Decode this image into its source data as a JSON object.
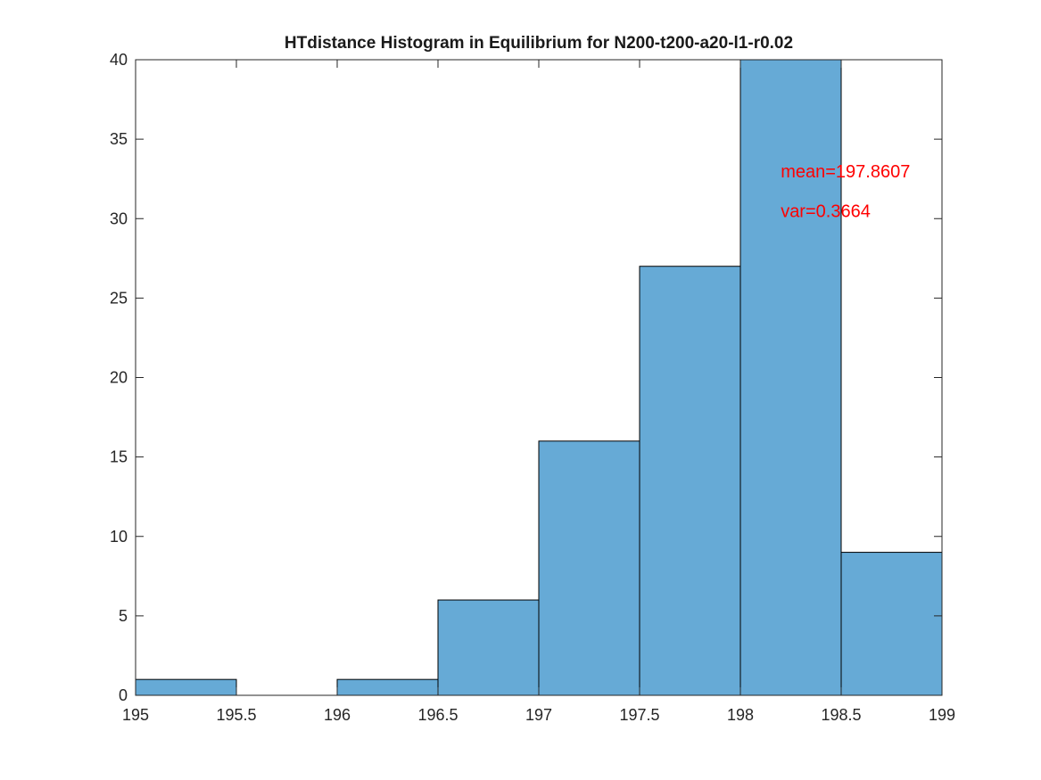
{
  "chart_data": {
    "type": "bar",
    "subtype": "histogram",
    "title": "HTdistance Histogram in Equilibrium for N200-t200-a20-l1-r0.02",
    "xlabel": "",
    "ylabel": "",
    "xlim": [
      195,
      199
    ],
    "ylim": [
      0,
      40
    ],
    "bin_width": 0.5,
    "bins": [
      {
        "start": 195.0,
        "end": 195.5,
        "count": 1
      },
      {
        "start": 195.5,
        "end": 196.0,
        "count": 0
      },
      {
        "start": 196.0,
        "end": 196.5,
        "count": 1
      },
      {
        "start": 196.5,
        "end": 197.0,
        "count": 6
      },
      {
        "start": 197.0,
        "end": 197.5,
        "count": 16
      },
      {
        "start": 197.5,
        "end": 198.0,
        "count": 27
      },
      {
        "start": 198.0,
        "end": 198.5,
        "count": 40
      },
      {
        "start": 198.5,
        "end": 199.0,
        "count": 9
      }
    ],
    "xticks": [
      "195",
      "195.5",
      "196",
      "196.5",
      "197",
      "197.5",
      "198",
      "198.5",
      "199"
    ],
    "yticks": [
      "0",
      "5",
      "10",
      "15",
      "20",
      "25",
      "30",
      "35",
      "40"
    ],
    "bar_color": "#66aad6",
    "edge_color": "#000000",
    "annotation_color": "#ff0000",
    "annotations": [
      {
        "text": "mean=197.8607",
        "x": 198.2,
        "y": 33
      },
      {
        "text": "var=0.3664",
        "x": 198.2,
        "y": 30.5
      }
    ],
    "grid": false,
    "legend": "none"
  }
}
